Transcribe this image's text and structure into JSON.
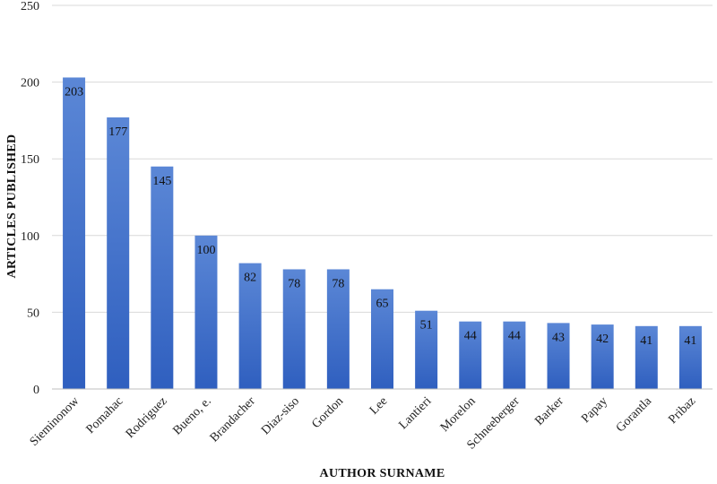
{
  "chart_data": {
    "type": "bar",
    "title": "",
    "xlabel": "AUTHOR SURNAME",
    "ylabel": "ARTICLES PUBLISHED",
    "categories": [
      "Sieminonow",
      "Pomahac",
      "Rodriguez",
      "Bueno, e.",
      "Brandacher",
      "Diaz-siso",
      "Gordon",
      "Lee",
      "Lantieri",
      "Morelon",
      "Schneeberger",
      "Barker",
      "Papay",
      "Gorantla",
      "Pribaz"
    ],
    "values": [
      203,
      177,
      145,
      100,
      82,
      78,
      78,
      65,
      51,
      44,
      44,
      43,
      42,
      41,
      41
    ],
    "ylim": [
      0,
      250
    ],
    "yticks": [
      0,
      50,
      100,
      150,
      200,
      250
    ],
    "grid": true,
    "legend": "none",
    "bar_color_top": "#5b87d6",
    "bar_color_bottom": "#2f5fbf",
    "grid_color": "#d9d9d9"
  }
}
